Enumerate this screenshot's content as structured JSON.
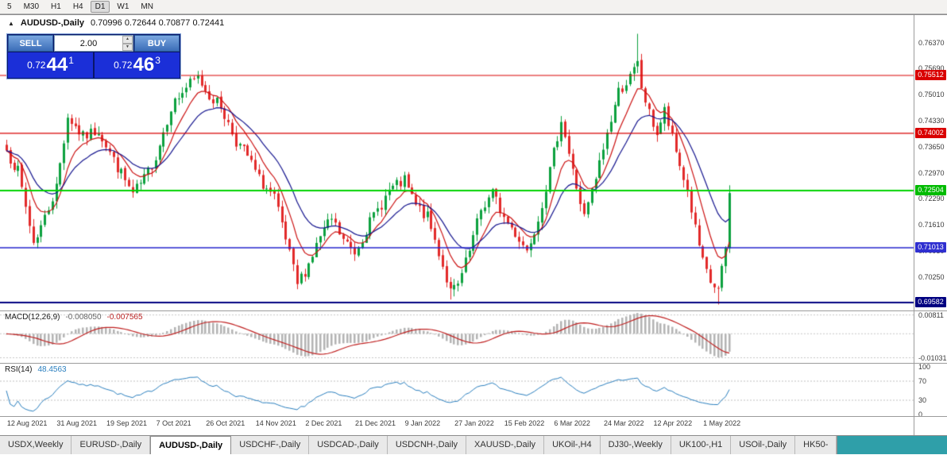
{
  "icons": {
    "collapse_arrow": "▲",
    "up_arrow": "▲",
    "down_arrow": "▼"
  },
  "toolbar": {
    "timeframes": [
      {
        "label": "5"
      },
      {
        "label": "M30"
      },
      {
        "label": "H1"
      },
      {
        "label": "H4"
      },
      {
        "label": "D1"
      },
      {
        "label": "W1"
      },
      {
        "label": "MN"
      }
    ],
    "active": "D1"
  },
  "chart": {
    "title_symbol": "AUDUSD-,Daily",
    "title_ohlc": "0.70996 0.72644 0.70877 0.72441",
    "one_click": {
      "sell_label": "SELL",
      "buy_label": "BUY",
      "volume": "2.00",
      "sell_prefix": "0.72",
      "sell_pips": "44",
      "sell_pipette": "1",
      "buy_prefix": "0.72",
      "buy_pips": "46",
      "buy_pipette": "3"
    },
    "y_ticks": [
      "0.76370",
      "0.75690",
      "0.75010",
      "0.74330",
      "0.73650",
      "0.72970",
      "0.72290",
      "0.71610",
      "0.70930",
      "0.70250",
      "0.69570"
    ],
    "price_lines": [
      {
        "price": 0.75512,
        "label": "0.75512",
        "color": "#d90000",
        "box": "#d90000",
        "weight": 1.2
      },
      {
        "price": 0.74002,
        "label": "0.74002",
        "color": "#d90000",
        "box": "#d90000",
        "weight": 1.2
      },
      {
        "price": 0.72504,
        "label": "0.72504",
        "color": "#00d300",
        "box": "#00bb00",
        "weight": 2
      },
      {
        "price": 0.71013,
        "label": "0.71013",
        "color": "#2626cc",
        "box": "#2f2fd0",
        "weight": 1.4
      },
      {
        "price": 0.69582,
        "label": "0.69582",
        "color": "#000080",
        "box": "#000080",
        "weight": 2
      }
    ],
    "x_labels": [
      {
        "bar": 1,
        "label": "12 Aug 2021"
      },
      {
        "bar": 14,
        "label": "31 Aug 2021"
      },
      {
        "bar": 27,
        "label": "19 Sep 2021"
      },
      {
        "bar": 40,
        "label": "7 Oct 2021"
      },
      {
        "bar": 53,
        "label": "26 Oct 2021"
      },
      {
        "bar": 66,
        "label": "14 Nov 2021"
      },
      {
        "bar": 79,
        "label": "2 Dec 2021"
      },
      {
        "bar": 92,
        "label": "21 Dec 2021"
      },
      {
        "bar": 105,
        "label": "9 Jan 2022"
      },
      {
        "bar": 118,
        "label": "27 Jan 2022"
      },
      {
        "bar": 131,
        "label": "15 Feb 2022"
      },
      {
        "bar": 144,
        "label": "6 Mar 2022"
      },
      {
        "bar": 157,
        "label": "24 Mar 2022"
      },
      {
        "bar": 170,
        "label": "12 Apr 2022"
      },
      {
        "bar": 183,
        "label": "1 May 2022"
      }
    ],
    "macd": {
      "title": "MACD(12,26,9)",
      "main_value": "-0.008050",
      "signal_value": "-0.007565",
      "scale_top": "0.00811",
      "scale_bottom": "-0.01031"
    },
    "rsi": {
      "title": "RSI(14)",
      "value": "48.4563",
      "scale": [
        "100",
        "70",
        "30",
        "0"
      ],
      "dotted_levels": [
        70,
        30
      ]
    }
  },
  "chart_data": {
    "type": "candlestick",
    "symbol": "AUDUSD-",
    "timeframe": "Daily",
    "bars": 190,
    "last_bar": {
      "open": 0.70996,
      "high": 0.72644,
      "low": 0.70877,
      "close": 0.72441
    },
    "price_axis_range": [
      0.6944,
      0.7665
    ],
    "waypoints": [
      [
        0,
        0.7355
      ],
      [
        3,
        0.73
      ],
      [
        7,
        0.7115
      ],
      [
        10,
        0.718
      ],
      [
        13,
        0.726
      ],
      [
        16,
        0.7445
      ],
      [
        20,
        0.739
      ],
      [
        24,
        0.741
      ],
      [
        28,
        0.733
      ],
      [
        33,
        0.724
      ],
      [
        36,
        0.728
      ],
      [
        39,
        0.734
      ],
      [
        43,
        0.747
      ],
      [
        47,
        0.752
      ],
      [
        50,
        0.7545
      ],
      [
        53,
        0.75
      ],
      [
        56,
        0.747
      ],
      [
        60,
        0.738
      ],
      [
        63,
        0.734
      ],
      [
        66,
        0.728
      ],
      [
        70,
        0.723
      ],
      [
        73,
        0.712
      ],
      [
        76,
        0.7005
      ],
      [
        79,
        0.706
      ],
      [
        82,
        0.713
      ],
      [
        85,
        0.7175
      ],
      [
        88,
        0.712
      ],
      [
        91,
        0.709
      ],
      [
        94,
        0.715
      ],
      [
        97,
        0.72
      ],
      [
        100,
        0.725
      ],
      [
        104,
        0.7275
      ],
      [
        107,
        0.721
      ],
      [
        110,
        0.718
      ],
      [
        113,
        0.709
      ],
      [
        116,
        0.6985
      ],
      [
        118,
        0.7
      ],
      [
        121,
        0.709
      ],
      [
        124,
        0.72
      ],
      [
        127,
        0.7245
      ],
      [
        130,
        0.718
      ],
      [
        133,
        0.714
      ],
      [
        136,
        0.7095
      ],
      [
        139,
        0.718
      ],
      [
        142,
        0.73
      ],
      [
        145,
        0.744
      ],
      [
        148,
        0.73
      ],
      [
        151,
        0.718
      ],
      [
        154,
        0.728
      ],
      [
        157,
        0.74
      ],
      [
        160,
        0.751
      ],
      [
        163,
        0.7545
      ],
      [
        165,
        0.758
      ],
      [
        166,
        0.752
      ],
      [
        168,
        0.745
      ],
      [
        170,
        0.74
      ],
      [
        172,
        0.7458
      ],
      [
        175,
        0.735
      ],
      [
        178,
        0.725
      ],
      [
        180,
        0.715
      ],
      [
        182,
        0.706
      ],
      [
        184,
        0.701
      ],
      [
        186,
        0.699
      ],
      [
        187,
        0.704
      ],
      [
        188,
        0.71
      ],
      [
        189,
        0.72441
      ]
    ],
    "overrides": {
      "high": [
        [
          50,
          0.7555
        ],
        [
          165,
          0.766
        ]
      ],
      "low": [
        [
          76,
          0.6993
        ],
        [
          116,
          0.6966
        ],
        [
          186,
          0.6953
        ]
      ]
    },
    "indicators": {
      "ma_fast": {
        "period": 8,
        "color": "#cc1111"
      },
      "ma_slow": {
        "period": 18,
        "color": "#15158f"
      },
      "macd": {
        "fast": 12,
        "slow": 26,
        "signal": 9,
        "hist_color": "#b4b4b4",
        "signal_color": "#c02020"
      },
      "rsi": {
        "period": 14,
        "color": "#2a7fbf"
      }
    },
    "colors": {
      "up": "#0ca13e",
      "down": "#e22a2a"
    }
  },
  "tabs": {
    "items": [
      {
        "label": "USDX,Weekly"
      },
      {
        "label": "EURUSD-,Daily"
      },
      {
        "label": "AUDUSD-,Daily"
      },
      {
        "label": "USDCHF-,Daily"
      },
      {
        "label": "USDCAD-,Daily"
      },
      {
        "label": "USDCNH-,Daily"
      },
      {
        "label": "XAUUSD-,Daily"
      },
      {
        "label": "UKOil-,H4"
      },
      {
        "label": "DJ30-,Weekly"
      },
      {
        "label": "UK100-,H1"
      },
      {
        "label": "USOil-,Daily"
      },
      {
        "label": "HK50-"
      }
    ],
    "active_index": 2
  }
}
